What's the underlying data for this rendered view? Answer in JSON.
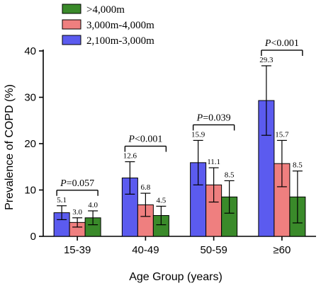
{
  "chart_data": {
    "type": "bar",
    "ylabel": "Prevalence of COPD (%)",
    "xlabel": "Age Group (years)",
    "ylim": [
      0,
      40
    ],
    "yticks": [
      0,
      10,
      20,
      30,
      40
    ],
    "grid": false,
    "legend_position": "top-left",
    "categories": [
      "15-39",
      "40-49",
      "50-59",
      "≥60"
    ],
    "series": [
      {
        "name": "2,100m-3,000m",
        "color": "#5b5bef",
        "values": [
          5.1,
          12.6,
          15.9,
          29.3
        ],
        "errors": [
          1.5,
          3.5,
          4.8,
          7.5
        ]
      },
      {
        "name": "3,000m-4,000m",
        "color": "#ef7f7f",
        "values": [
          3.0,
          6.8,
          11.1,
          15.7
        ],
        "errors": [
          1.0,
          2.5,
          3.7,
          5.0
        ]
      },
      {
        "name": ">4,000m",
        "color": "#3a8a2a",
        "values": [
          4.0,
          4.5,
          8.5,
          8.5
        ],
        "errors": [
          1.5,
          2.0,
          3.5,
          5.6
        ]
      }
    ],
    "legend_order": [
      ">4,000m",
      "3,000m-4,000m",
      "2,100m-3,000m"
    ],
    "annotations": [
      {
        "category_index": 0,
        "italic": "P",
        "text": "=0.057"
      },
      {
        "category_index": 1,
        "italic": "P",
        "text": "<0.001"
      },
      {
        "category_index": 2,
        "italic": "P",
        "text": "=0.039"
      },
      {
        "category_index": 3,
        "italic": "P",
        "text": "<0.001"
      }
    ]
  }
}
